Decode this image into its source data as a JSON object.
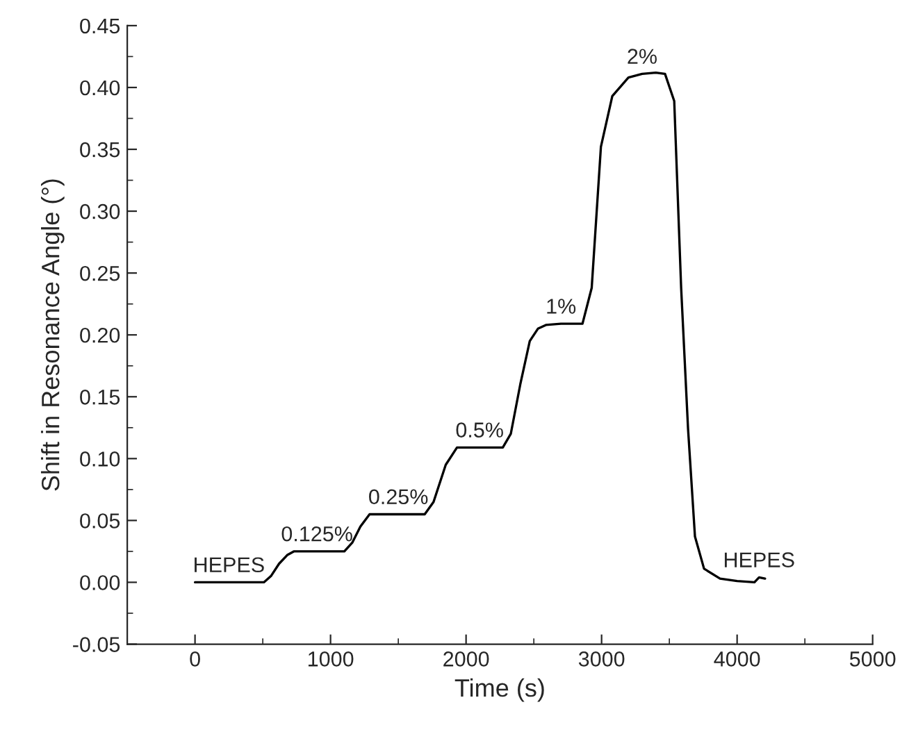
{
  "chart_data": {
    "type": "line",
    "xlabel": "Time (s)",
    "ylabel": "Shift in Resonance Angle (°)",
    "xlim": [
      -500,
      5000
    ],
    "xticks": [
      0,
      1000,
      2000,
      3000,
      4000,
      5000
    ],
    "ylim": [
      -0.05,
      0.45
    ],
    "yticks": [
      {
        "value": -0.05,
        "label": "-0.05"
      },
      {
        "value": 0,
        "label": "0.00"
      },
      {
        "value": 0.05,
        "label": "0.05"
      },
      {
        "value": 0.1,
        "label": "0.10"
      },
      {
        "value": 0.15,
        "label": "0.15"
      },
      {
        "value": 0.2,
        "label": "0.20"
      },
      {
        "value": 0.25,
        "label": "0.25"
      },
      {
        "value": 0.3,
        "label": "0.30"
      },
      {
        "value": 0.35,
        "label": "0.35"
      },
      {
        "value": 0.4,
        "label": "0.40"
      },
      {
        "value": 0.45,
        "label": "0.45"
      }
    ],
    "grid": false,
    "legend": false,
    "marker": "none",
    "line_style": "solid",
    "series": [
      {
        "color": "#000000",
        "x": [
          0,
          250,
          508,
          560,
          620,
          680,
          729,
          900,
          1102,
          1160,
          1220,
          1288,
          1500,
          1695,
          1760,
          1850,
          1933,
          2100,
          2271,
          2330,
          2400,
          2470,
          2530,
          2589,
          2700,
          2859,
          2927,
          2995,
          3079,
          3198,
          3299,
          3400,
          3468,
          3536,
          3587,
          3638,
          3689,
          3756,
          3874,
          4000,
          4128,
          4162,
          4206
        ],
        "values": [
          0,
          0,
          0,
          0.005,
          0.015,
          0.022,
          0.025,
          0.025,
          0.025,
          0.032,
          0.045,
          0.055,
          0.055,
          0.055,
          0.065,
          0.095,
          0.109,
          0.109,
          0.109,
          0.12,
          0.16,
          0.195,
          0.205,
          0.208,
          0.209,
          0.209,
          0.238,
          0.352,
          0.393,
          0.408,
          0.411,
          0.412,
          0.411,
          0.389,
          0.238,
          0.124,
          0.037,
          0.011,
          0.003,
          0.001,
          0,
          0.004,
          0.003
        ]
      }
    ],
    "annotations": [
      {
        "text": "HEPES",
        "x": 250,
        "y": 0
      },
      {
        "text": "0.125%",
        "x": 900,
        "y": 0.025
      },
      {
        "text": "0.25%",
        "x": 1500,
        "y": 0.055
      },
      {
        "text": "0.5%",
        "x": 2100,
        "y": 0.109
      },
      {
        "text": "1%",
        "x": 2700,
        "y": 0.209
      },
      {
        "text": "2%",
        "x": 3299,
        "y": 0.411
      },
      {
        "text": "HEPES",
        "x": 4162,
        "y": 0.004
      }
    ]
  }
}
